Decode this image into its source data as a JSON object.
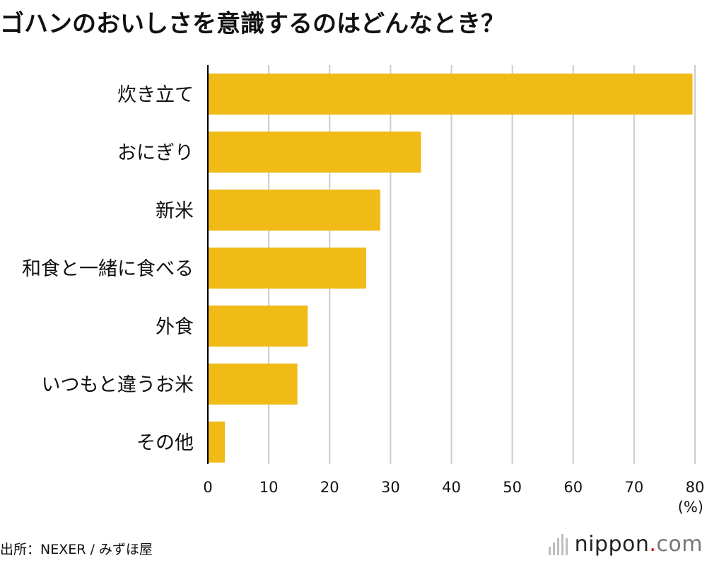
{
  "title": "ゴハンのおいしさを意識するのはどんなとき？",
  "source": "出所：NEXER / みずほ屋",
  "logo": {
    "name": "nippon",
    "dot": ".",
    "tld": "com"
  },
  "colors": {
    "bar": "#F0BA17",
    "grid": "#cccccc",
    "axis": "#000000"
  },
  "chart_data": {
    "type": "bar",
    "orientation": "horizontal",
    "categories": [
      "炊き立て",
      "おにぎり",
      "新米",
      "和食と一緒に食べる",
      "外食",
      "いつもと違うお米",
      "その他"
    ],
    "values": [
      79.6,
      35.0,
      28.3,
      26.0,
      16.4,
      14.7,
      2.8
    ],
    "xlim": [
      0,
      80
    ],
    "xticks": [
      0,
      10,
      20,
      30,
      40,
      50,
      60,
      70,
      80
    ],
    "unit_label": "(%)",
    "grid": true
  }
}
